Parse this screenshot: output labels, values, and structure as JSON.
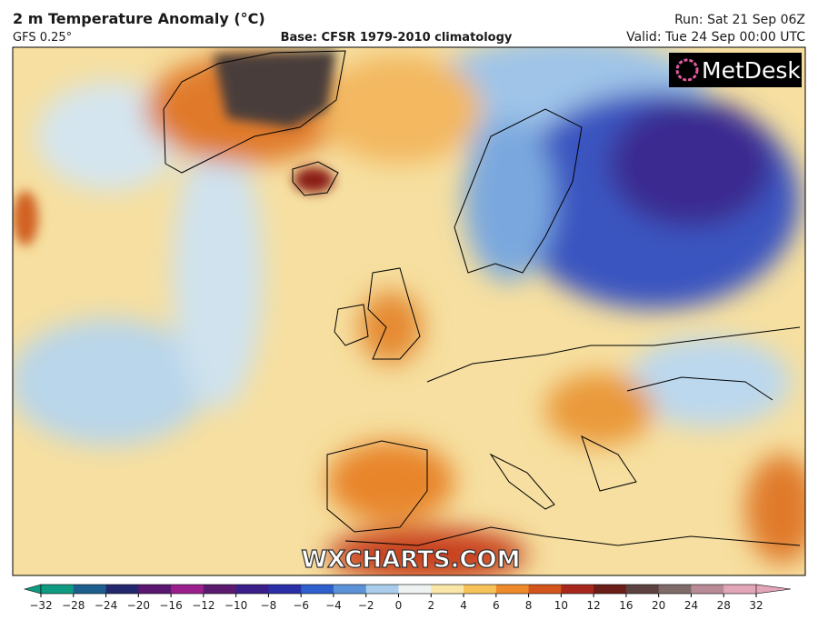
{
  "header": {
    "title": "2 m Temperature Anomaly (°C)",
    "model": "GFS 0.25°",
    "base": "Base: CFSR 1979-2010 climatology",
    "run": "Run: Sat 21 Sep 06Z",
    "valid": "Valid: Tue 24 Sep 00:00 UTC"
  },
  "logo": "MetDesk",
  "watermark": "WXCHARTS.COM",
  "colorbar": {
    "ticks": [
      {
        "value": -32,
        "label": "−32"
      },
      {
        "value": -28,
        "label": "−28"
      },
      {
        "value": -24,
        "label": "−24"
      },
      {
        "value": -20,
        "label": "−20"
      },
      {
        "value": -16,
        "label": "−16"
      },
      {
        "value": -12,
        "label": "−12"
      },
      {
        "value": -10,
        "label": "−10"
      },
      {
        "value": -8,
        "label": "−8"
      },
      {
        "value": -6,
        "label": "−6"
      },
      {
        "value": -4,
        "label": "−4"
      },
      {
        "value": -2,
        "label": "−2"
      },
      0,
      2,
      4,
      6,
      8,
      10,
      12,
      16,
      20,
      24,
      28,
      32
    ],
    "colors": [
      "#0f9a82",
      "#1c5f8e",
      "#23286e",
      "#5a1670",
      "#9a1f8c",
      "#5b1a6e",
      "#3a1e8a",
      "#2a2fa8",
      "#2f5fcc",
      "#5b92d8",
      "#a9cdea",
      "#eef2f0",
      "#f8e7a8",
      "#f6c25a",
      "#ee8a2a",
      "#d3551b",
      "#a8271c",
      "#6b1d17",
      "#5b4240",
      "#7f6a6a",
      "#b88a96",
      "#e2a6b8"
    ]
  }
}
